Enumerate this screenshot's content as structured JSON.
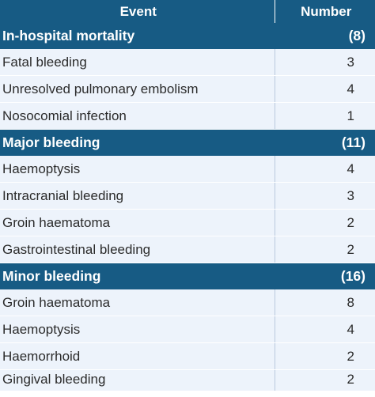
{
  "header": {
    "event": "Event",
    "number": "Number"
  },
  "groups": [
    {
      "title": "In-hospital mortality",
      "total": "(8)",
      "rows": [
        {
          "event": "Fatal bleeding",
          "number": "3"
        },
        {
          "event": "Unresolved pulmonary embolism",
          "number": "4"
        },
        {
          "event": "Nosocomial infection",
          "number": "1"
        }
      ]
    },
    {
      "title": "Major bleeding",
      "total": "(11)",
      "rows": [
        {
          "event": "Haemoptysis",
          "number": "4"
        },
        {
          "event": "Intracranial bleeding",
          "number": "3"
        },
        {
          "event": "Groin haematoma",
          "number": "2"
        },
        {
          "event": "Gastrointestinal bleeding",
          "number": "2"
        }
      ]
    },
    {
      "title": "Minor bleeding",
      "total": "(16)",
      "rows": [
        {
          "event": "Groin haematoma",
          "number": "8"
        },
        {
          "event": "Haemoptysis",
          "number": "4"
        },
        {
          "event": "Haemorrhoid",
          "number": "2"
        },
        {
          "event": "Gingival bleeding",
          "number": "2"
        }
      ]
    }
  ]
}
